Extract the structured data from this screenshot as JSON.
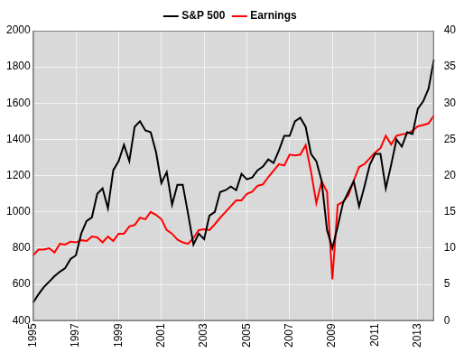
{
  "chart_data": {
    "type": "line",
    "categories": [
      "1995",
      null,
      null,
      null,
      null,
      null,
      null,
      null,
      "1997",
      null,
      null,
      null,
      null,
      null,
      null,
      null,
      "1999",
      null,
      null,
      null,
      null,
      null,
      null,
      null,
      "2001",
      null,
      null,
      null,
      null,
      null,
      null,
      null,
      "2003",
      null,
      null,
      null,
      null,
      null,
      null,
      null,
      "2005",
      null,
      null,
      null,
      null,
      null,
      null,
      null,
      "2007",
      null,
      null,
      null,
      null,
      null,
      null,
      null,
      "2009",
      null,
      null,
      null,
      null,
      null,
      null,
      null,
      "2011",
      null,
      null,
      null,
      null,
      null,
      null,
      null,
      "2013",
      null,
      null,
      null
    ],
    "series": [
      {
        "name": "S&P 500",
        "color": "#000000",
        "values": [
          500,
          545,
          585,
          615,
          645,
          670,
          690,
          740,
          760,
          880,
          950,
          970,
          1100,
          1130,
          1020,
          1230,
          1280,
          1370,
          1280,
          1470,
          1500,
          1450,
          1440,
          1330,
          1160,
          1220,
          1040,
          1150,
          1150,
          990,
          820,
          880,
          850,
          980,
          1000,
          1110,
          1120,
          1140,
          1120,
          1210,
          1180,
          1190,
          1230,
          1250,
          1290,
          1270,
          1340,
          1420,
          1420,
          1500,
          1520,
          1470,
          1320,
          1280,
          1170,
          900,
          800,
          920,
          1050,
          1110,
          1170,
          1030,
          1140,
          1260,
          1320,
          1320,
          1130,
          1260,
          1400,
          1360,
          1440,
          1430,
          1570,
          1610,
          1680,
          1840
        ]
      },
      {
        "name": "Earnings",
        "color": "#ff0000",
        "axis": "y2",
        "values": [
          9.0,
          9.8,
          9.8,
          10.0,
          9.4,
          10.6,
          10.5,
          10.9,
          10.8,
          11.1,
          11.0,
          11.6,
          11.5,
          10.8,
          11.6,
          11.0,
          12.0,
          12.0,
          13.0,
          13.2,
          14.2,
          14.0,
          15.0,
          14.6,
          14.0,
          12.5,
          12.0,
          11.2,
          10.8,
          10.6,
          11.4,
          12.5,
          12.6,
          12.5,
          13.3,
          14.2,
          15.0,
          15.8,
          16.6,
          16.6,
          17.5,
          17.8,
          18.6,
          18.8,
          19.8,
          20.7,
          21.6,
          21.4,
          22.9,
          22.8,
          22.9,
          24.2,
          20.6,
          16.2,
          19.2,
          17.8,
          5.7,
          16.0,
          16.4,
          17.3,
          19.3,
          21.2,
          21.6,
          22.4,
          23.2,
          23.8,
          25.5,
          24.3,
          25.5,
          25.7,
          25.8,
          26.2,
          26.8,
          27.0,
          27.2,
          28.3
        ]
      }
    ],
    "ylim": [
      400,
      2000
    ],
    "yticks": [
      400,
      600,
      800,
      1000,
      1200,
      1400,
      1600,
      1800,
      2000
    ],
    "y2lim": [
      0,
      40
    ],
    "y2ticks": [
      0,
      5,
      10,
      15,
      20,
      25,
      30,
      35,
      40
    ],
    "grid": true,
    "legend": "top"
  }
}
